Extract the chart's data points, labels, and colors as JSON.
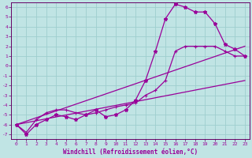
{
  "xlabel": "Windchill (Refroidissement éolien,°C)",
  "bg_color": "#c0e4e4",
  "grid_color": "#9ecece",
  "line_color": "#990099",
  "axis_color": "#660066",
  "xlim": [
    -0.5,
    23.5
  ],
  "ylim": [
    -7.5,
    6.5
  ],
  "xticks": [
    0,
    1,
    2,
    3,
    4,
    5,
    6,
    7,
    8,
    9,
    10,
    11,
    12,
    13,
    14,
    15,
    16,
    17,
    18,
    19,
    20,
    21,
    22,
    23
  ],
  "yticks": [
    -7,
    -6,
    -5,
    -4,
    -3,
    -2,
    -1,
    0,
    1,
    2,
    3,
    4,
    5,
    6
  ],
  "hours": [
    0,
    1,
    2,
    3,
    4,
    5,
    6,
    7,
    8,
    9,
    10,
    11,
    12,
    13,
    14,
    15,
    16,
    17,
    18,
    19,
    20,
    21,
    22,
    23
  ],
  "temperature": [
    -6.0,
    -7.0,
    -6.0,
    -5.5,
    -5.0,
    -5.2,
    -5.5,
    -5.0,
    -4.5,
    -5.2,
    -5.0,
    -4.5,
    -3.5,
    -1.5,
    1.5,
    4.8,
    6.3,
    6.0,
    5.5,
    5.5,
    4.3,
    2.2,
    1.7,
    1.0
  ],
  "windchill": [
    -6.0,
    -6.8,
    -5.5,
    -4.8,
    -4.5,
    -4.5,
    -4.8,
    -5.0,
    -4.8,
    -4.5,
    -4.2,
    -4.0,
    -3.8,
    -3.0,
    -2.5,
    -1.5,
    1.5,
    2.0,
    2.0,
    2.0,
    2.0,
    1.5,
    1.0,
    1.0
  ],
  "lin1": [
    -6.0,
    2.0
  ],
  "lin2": [
    -6.0,
    -1.5
  ]
}
